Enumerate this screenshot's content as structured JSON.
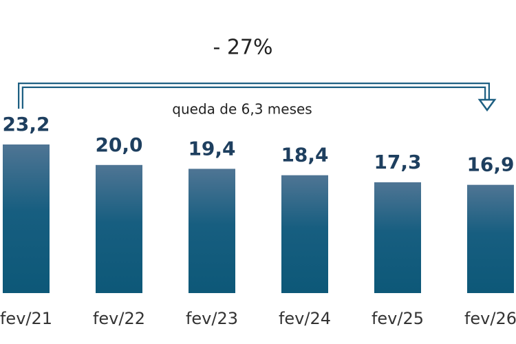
{
  "chart_data": {
    "type": "bar",
    "categories": [
      "fev/21",
      "fev/22",
      "fev/23",
      "fev/24",
      "fev/25",
      "fev/26"
    ],
    "values": [
      23.2,
      20.0,
      19.4,
      18.4,
      17.3,
      16.9
    ],
    "value_labels": [
      "23,2",
      "20,0",
      "19,4",
      "18,4",
      "17,3",
      "16,9"
    ],
    "annotations": [
      "- 27%",
      "queda de 6,3 meses"
    ]
  }
}
